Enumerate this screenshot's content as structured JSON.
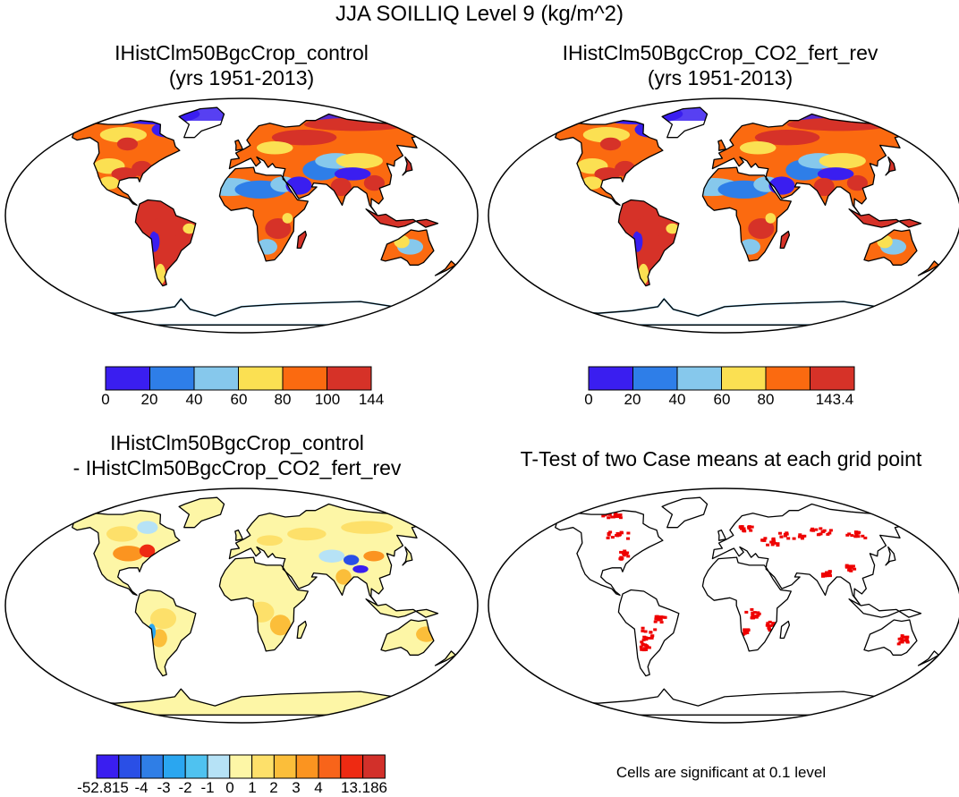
{
  "figure": {
    "title": "JJA SOILLIQ Level 9 (kg/m^2)"
  },
  "panels": [
    {
      "id": "control",
      "title_lines": [
        "IHistClm50BgcCrop_control",
        "(yrs 1951-2013)"
      ],
      "colorbar": {
        "colors": [
          "#3a1ef0",
          "#2e7ee8",
          "#86c8ec",
          "#fbe052",
          "#fb6a10",
          "#d63228"
        ],
        "labels": [
          "0",
          "20",
          "40",
          "60",
          "80",
          "100",
          "144"
        ]
      }
    },
    {
      "id": "co2_fert_rev",
      "title_lines": [
        "IHistClm50BgcCrop_CO2_fert_rev",
        "(yrs 1951-2013)"
      ],
      "colorbar": {
        "colors": [
          "#3a1ef0",
          "#2e7ee8",
          "#86c8ec",
          "#fbe052",
          "#fb6a10",
          "#d63228"
        ],
        "labels": [
          "0",
          "20",
          "40",
          "60",
          "80",
          "",
          "143.4"
        ]
      }
    },
    {
      "id": "difference",
      "title_lines": [
        "IHistClm50BgcCrop_control",
        "- IHistClm50BgcCrop_CO2_fert_rev"
      ],
      "colorbar": {
        "colors": [
          "#3a1ef0",
          "#2a4fe6",
          "#2f7ee6",
          "#2aa6f0",
          "#4fc2f0",
          "#b6e2f6",
          "#fdf6a6",
          "#fde06a",
          "#fbbe3a",
          "#fb9420",
          "#f8641a",
          "#ee2a12",
          "#d2302a"
        ],
        "labels": [
          "-52.815",
          "-4",
          "-3",
          "-2",
          "-1",
          "0",
          "1",
          "2",
          "3",
          "4",
          "13.186"
        ]
      }
    },
    {
      "id": "ttest",
      "title_lines": [
        "T-Test of two Case means at each grid point"
      ],
      "note": "Cells are significant at 0.1 level"
    }
  ]
}
